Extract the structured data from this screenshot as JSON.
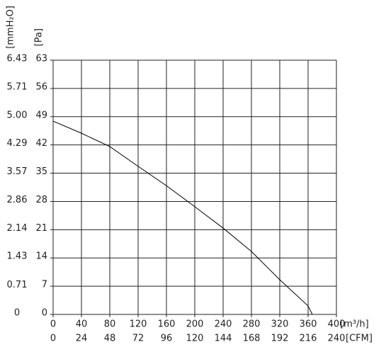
{
  "chart_data": {
    "type": "line",
    "x_label": "[m³/h]",
    "x2_label": "[CFM]",
    "y_label": "[Pa]",
    "y2_label": "[mmH₂O]",
    "x": [
      0,
      40,
      80,
      120,
      160,
      200,
      240,
      280,
      320,
      360,
      366
    ],
    "series": [
      {
        "color": "#000000",
        "values": [
          47.9,
          44.9,
          41.6,
          36.7,
          31.9,
          26.7,
          21.4,
          15.6,
          8.6,
          2.1,
          0
        ]
      }
    ],
    "xlim": [
      0,
      400
    ],
    "xticks": [
      0,
      40,
      80,
      120,
      160,
      200,
      240,
      280,
      320,
      360,
      400
    ],
    "x2lim": [
      0,
      240
    ],
    "x2ticks": [
      0,
      24,
      48,
      72,
      96,
      120,
      144,
      168,
      192,
      216,
      240
    ],
    "ylim": [
      0,
      63
    ],
    "yticks": [
      0,
      7,
      14,
      21,
      28,
      35,
      42,
      49,
      56,
      63
    ],
    "y2lim": [
      0,
      6.43
    ],
    "y2ticks": [
      0,
      0.71,
      1.43,
      2.14,
      2.86,
      3.57,
      4.29,
      {
        "value": 5,
        "label": "5.00"
      },
      5.71,
      6.43
    ],
    "grid": true
  }
}
